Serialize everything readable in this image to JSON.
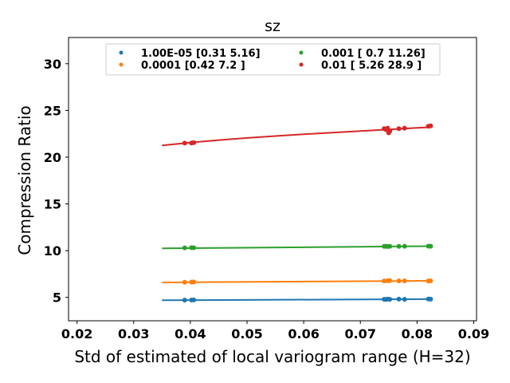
{
  "chart_data": {
    "type": "scatter",
    "title": "sz",
    "xlabel": "Std of estimated of local variogram range (H=32)",
    "ylabel": "Compression Ratio",
    "xlim": [
      0.0185,
      0.0905
    ],
    "ylim": [
      2.5,
      32.8
    ],
    "xticks": [
      0.02,
      0.03,
      0.04,
      0.05,
      0.06,
      0.07,
      0.08,
      0.09
    ],
    "xtick_labels": [
      "0.02",
      "0.03",
      "0.04",
      "0.05",
      "0.06",
      "0.07",
      "0.08",
      "0.09"
    ],
    "yticks": [
      5,
      10,
      15,
      20,
      25,
      30
    ],
    "ytick_labels": [
      "5",
      "10",
      "15",
      "20",
      "25",
      "30"
    ],
    "legend_position": "top-center",
    "legend_columns": 2,
    "series": [
      {
        "name": "1.00E-05 [0.31 5.16]",
        "color": "#1f77b4",
        "points": [
          [
            0.039,
            4.71
          ],
          [
            0.0402,
            4.72
          ],
          [
            0.0406,
            4.73
          ],
          [
            0.0742,
            4.8
          ],
          [
            0.0745,
            4.79
          ],
          [
            0.0748,
            4.81
          ],
          [
            0.0752,
            4.8
          ],
          [
            0.0768,
            4.81
          ],
          [
            0.0778,
            4.8
          ],
          [
            0.082,
            4.82
          ],
          [
            0.0824,
            4.81
          ]
        ],
        "fit_x": [
          0.035,
          0.0825
        ],
        "fit_y": [
          4.69,
          4.81
        ]
      },
      {
        "name": "0.0001 [0.42 7.2 ]",
        "color": "#ff7f0e",
        "points": [
          [
            0.039,
            6.62
          ],
          [
            0.0402,
            6.64
          ],
          [
            0.0406,
            6.65
          ],
          [
            0.0742,
            6.76
          ],
          [
            0.0748,
            6.78
          ],
          [
            0.0752,
            6.8
          ],
          [
            0.0768,
            6.77
          ],
          [
            0.0778,
            6.77
          ],
          [
            0.082,
            6.76
          ],
          [
            0.0824,
            6.77
          ]
        ],
        "fit_x": [
          0.035,
          0.0825
        ],
        "fit_y": [
          6.6,
          6.78
        ]
      },
      {
        "name": "0.001 [ 0.7  11.26]",
        "color": "#2ca02c",
        "points": [
          [
            0.039,
            10.3
          ],
          [
            0.0402,
            10.32
          ],
          [
            0.0406,
            10.31
          ],
          [
            0.0742,
            10.46
          ],
          [
            0.0745,
            10.47
          ],
          [
            0.0748,
            10.45
          ],
          [
            0.0752,
            10.46
          ],
          [
            0.0768,
            10.46
          ],
          [
            0.0778,
            10.47
          ],
          [
            0.082,
            10.48
          ],
          [
            0.0824,
            10.47
          ]
        ],
        "fit_x": [
          0.035,
          0.0825
        ],
        "fit_y": [
          10.24,
          10.48
        ]
      },
      {
        "name": "0.01 [ 5.26 28.9 ]",
        "color": "#d62728",
        "points": [
          [
            0.039,
            21.5
          ],
          [
            0.0402,
            21.51
          ],
          [
            0.0406,
            21.55
          ],
          [
            0.0742,
            23.05
          ],
          [
            0.0745,
            22.95
          ],
          [
            0.0748,
            23.1
          ],
          [
            0.075,
            22.6
          ],
          [
            0.0752,
            22.8
          ],
          [
            0.0768,
            23.05
          ],
          [
            0.0778,
            23.1
          ],
          [
            0.082,
            23.3
          ],
          [
            0.0824,
            23.35
          ]
        ],
        "fit_x": [
          0.035,
          0.04,
          0.045,
          0.05,
          0.055,
          0.06,
          0.065,
          0.07,
          0.075,
          0.08,
          0.0825
        ],
        "fit_y": [
          21.25,
          21.56,
          21.82,
          22.05,
          22.26,
          22.45,
          22.63,
          22.8,
          22.97,
          23.13,
          23.21
        ]
      }
    ]
  }
}
